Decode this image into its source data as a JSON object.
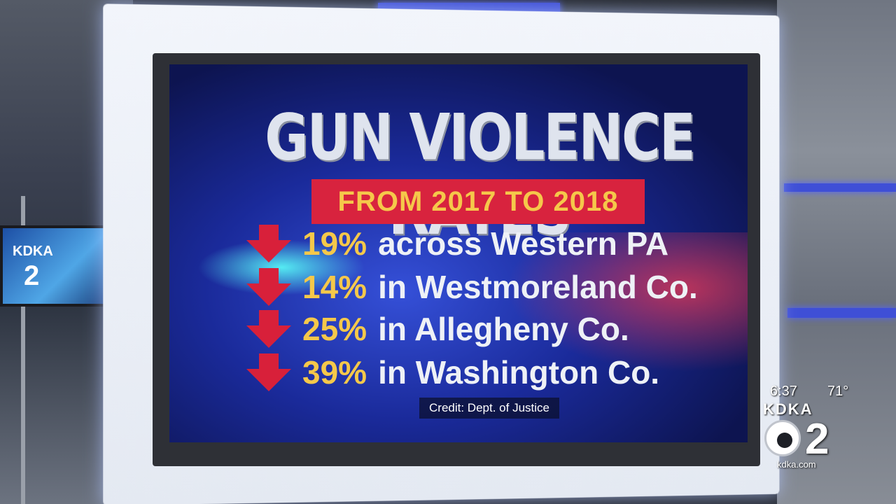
{
  "graphic": {
    "title": "GUN VIOLENCE RATES",
    "subtitle": "FROM 2017 TO 2018",
    "stats": [
      {
        "pct": "19%",
        "label": "across Western PA"
      },
      {
        "pct": "14%",
        "label": "in Westmoreland Co."
      },
      {
        "pct": "25%",
        "label": "in Allegheny Co."
      },
      {
        "pct": "39%",
        "label": "in Washington Co."
      }
    ],
    "credit": "Credit: Dept. of Justice"
  },
  "bug": {
    "time": "6:37",
    "temp": "71°",
    "callsign": "KDKA",
    "channel": "2",
    "url": "kdka.com"
  },
  "studio_monitor": {
    "callsign": "KDKA",
    "channel": "2"
  },
  "colors": {
    "accent_red": "#d8233e",
    "accent_yellow": "#f5c84a",
    "screen_blue": "#1a2a9a"
  }
}
